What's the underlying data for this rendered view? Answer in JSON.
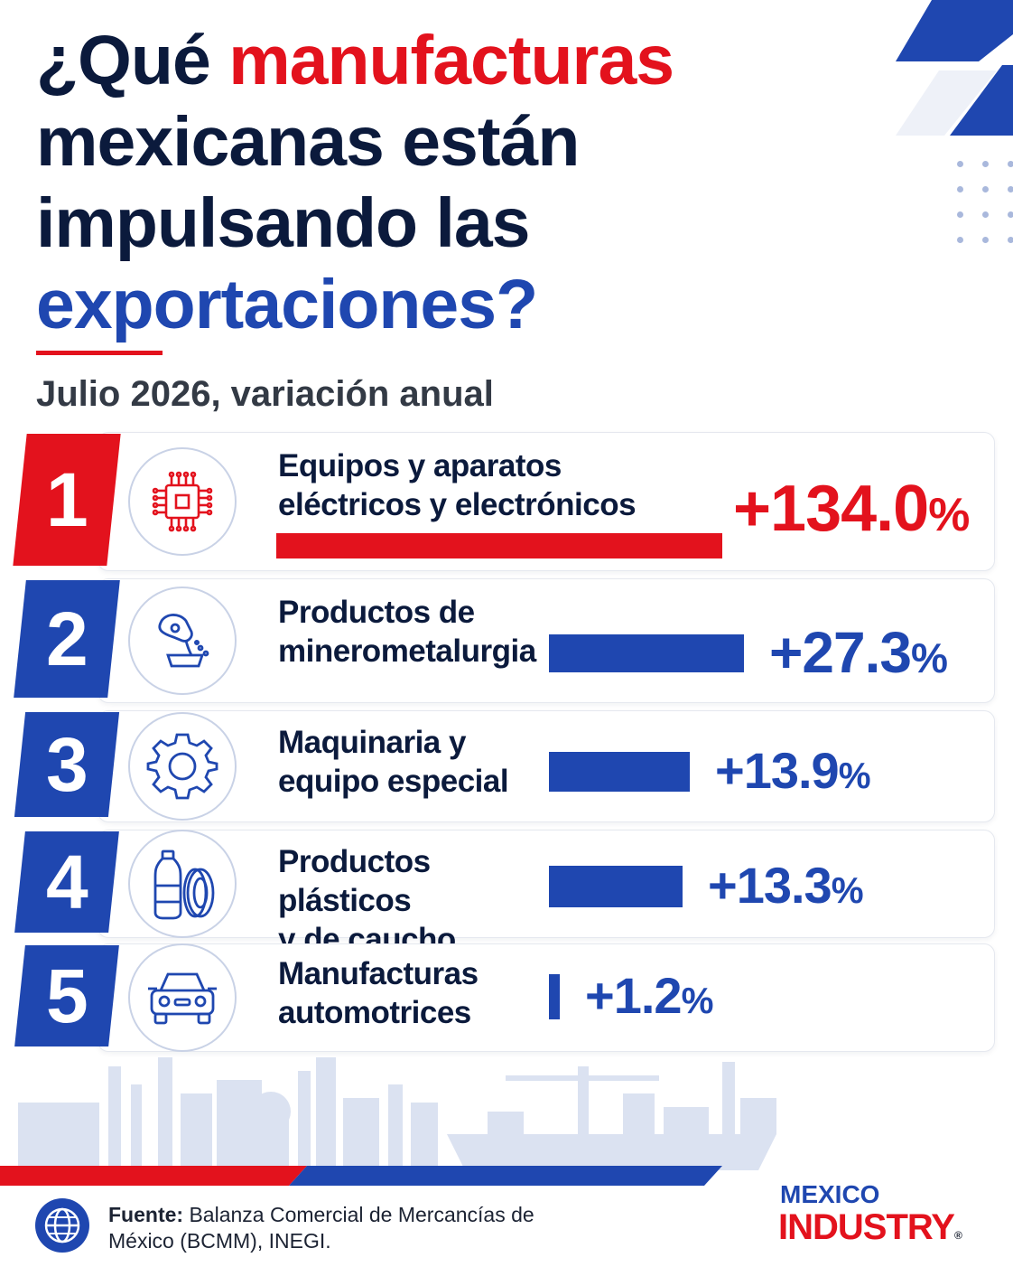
{
  "title": {
    "part1": "¿Qué ",
    "part2": "manufacturas",
    "part3": "mexicanas están",
    "part4": "impulsando las",
    "part5": "exportaciones?"
  },
  "chart_data": {
    "type": "bar",
    "title": "¿Qué manufacturas mexicanas están impulsando las exportaciones?",
    "subtitle": "Julio 2026, variación anual",
    "categories": [
      "Equipos y aparatos eléctricos y electrónicos",
      "Productos de minerometalurgia",
      "Maquinaria y equipo especial",
      "Productos plásticos y de caucho",
      "Manufacturas automotrices"
    ],
    "values": [
      134.0,
      27.3,
      13.9,
      13.3,
      1.2
    ],
    "unit": "%",
    "orientation": "horizontal",
    "rows": [
      {
        "rank": "1",
        "line1": "Equipos y aparatos",
        "line2": "eléctricos y electrónicos",
        "value_label": "+134.0",
        "value": 134.0,
        "color": "#e3121d",
        "icon": "circuit-chip-icon"
      },
      {
        "rank": "2",
        "line1": "Productos de",
        "line2": "minerometalurgia",
        "value_label": "+27.3",
        "value": 27.3,
        "color": "#1f47b0",
        "icon": "molten-metal-ladle-icon"
      },
      {
        "rank": "3",
        "line1": "Maquinaria y",
        "line2": "equipo especial",
        "value_label": "+13.9",
        "value": 13.9,
        "color": "#1f47b0",
        "icon": "gear-icon"
      },
      {
        "rank": "4",
        "line1": "Productos plásticos",
        "line2": "y de caucho",
        "value_label": "+13.3",
        "value": 13.3,
        "color": "#1f47b0",
        "icon": "bottle-tire-icon"
      },
      {
        "rank": "5",
        "line1": "Manufacturas",
        "line2": "automotrices",
        "value_label": "+1.2",
        "value": 1.2,
        "color": "#1f47b0",
        "icon": "car-icon"
      }
    ],
    "pct_sign": "%"
  },
  "footer": {
    "source_label": "Fuente:",
    "source_text": "Balanza Comercial de Mercancías de México (BCMM), INEGI."
  },
  "brand": {
    "line1": "MEXICO",
    "line2": "INDUSTRY",
    "mark": "®"
  },
  "colors": {
    "navy": "#0b1a3c",
    "red": "#e3121d",
    "blue": "#1f47b0"
  }
}
